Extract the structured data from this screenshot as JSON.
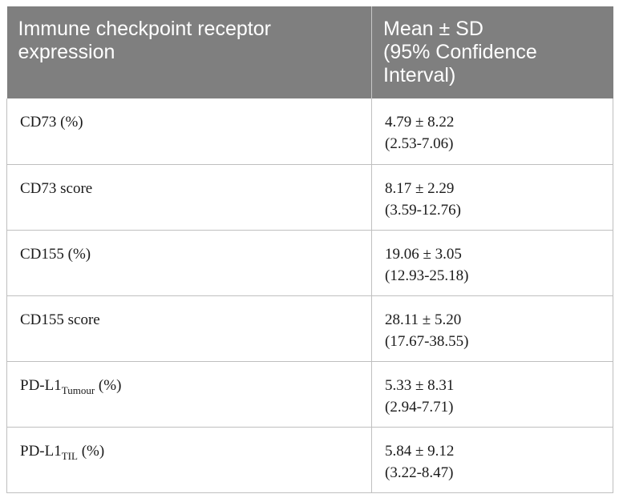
{
  "table": {
    "headers": {
      "col1": "Immune checkpoint receptor expression",
      "col2_line1": "Mean ± SD",
      "col2_line2": "(95% Confidence",
      "col2_line3": "Interval)"
    },
    "rows": [
      {
        "label": "CD73 (%)",
        "label_main": "CD73 (%)",
        "label_sub": "",
        "label_suffix": "",
        "mean_sd": "4.79 ± 8.22",
        "ci": "(2.53-7.06)"
      },
      {
        "label": "CD73 score",
        "label_main": "CD73 score",
        "label_sub": "",
        "label_suffix": "",
        "mean_sd": "8.17 ± 2.29",
        "ci": "(3.59-12.76)"
      },
      {
        "label": "CD155 (%)",
        "label_main": "CD155 (%)",
        "label_sub": "",
        "label_suffix": "",
        "mean_sd": "19.06 ± 3.05",
        "ci": "(12.93-25.18)"
      },
      {
        "label": "CD155 score",
        "label_main": "CD155 score",
        "label_sub": "",
        "label_suffix": "",
        "mean_sd": "28.11 ± 5.20",
        "ci": "(17.67-38.55)"
      },
      {
        "label": "PD-L1 Tumour (%)",
        "label_main": "PD-L1",
        "label_sub": "Tumour",
        "label_suffix": " (%)",
        "mean_sd": "5.33 ± 8.31",
        "ci": "(2.94-7.71)"
      },
      {
        "label": "PD-L1 TIL (%)",
        "label_main": "PD-L1",
        "label_sub": "TIL",
        "label_suffix": " (%)",
        "mean_sd": "5.84 ± 9.12",
        "ci": "(3.22-8.47)"
      }
    ]
  }
}
